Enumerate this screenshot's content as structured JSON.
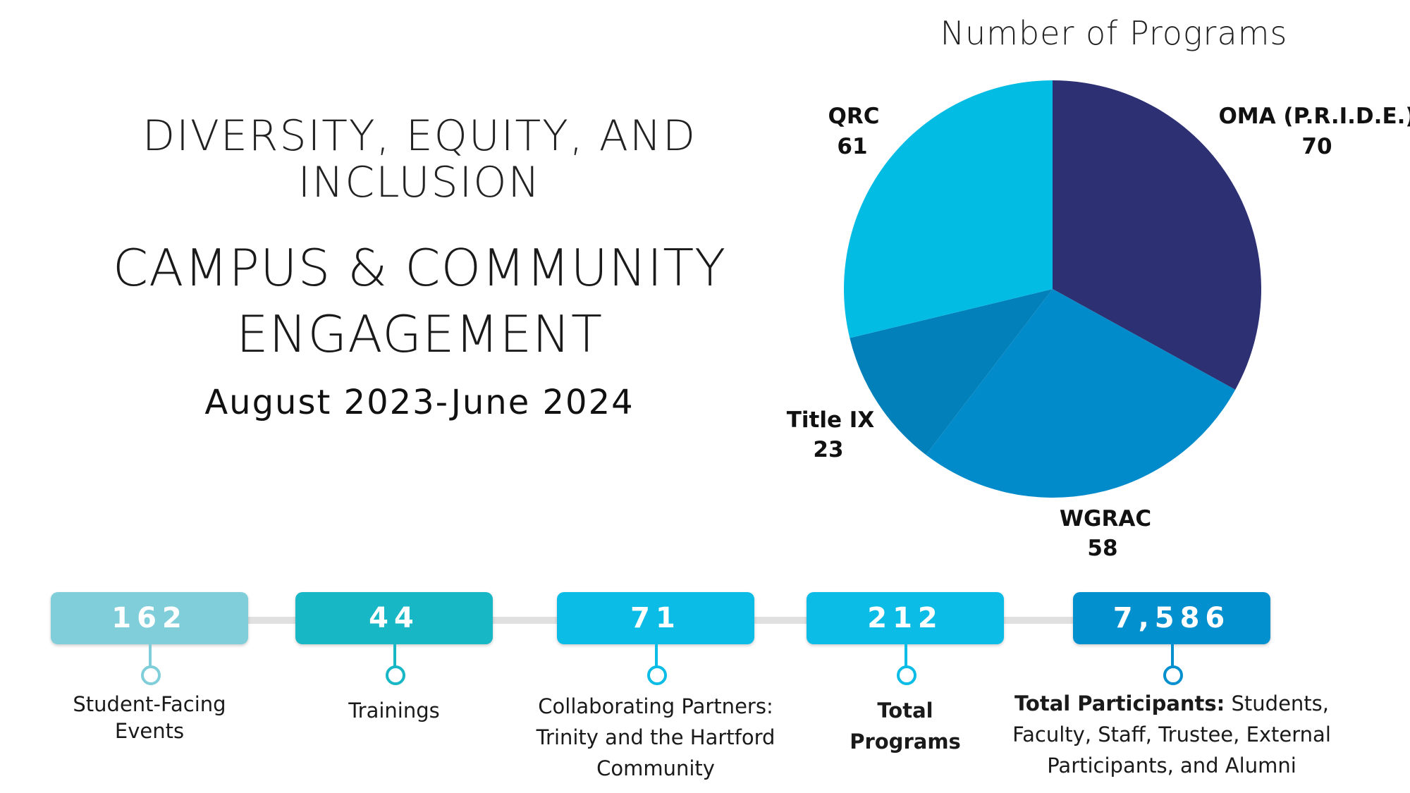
{
  "header": {
    "dei_title": "DIVERSITY, EQUITY, AND INCLUSION",
    "campus_title_line1": "CAMPUS & COMMUNITY",
    "campus_title_line2": "ENGAGEMENT",
    "date_range": "August 2023-June 2024"
  },
  "chart_data": {
    "type": "pie",
    "title": "Number of Programs",
    "slices": [
      {
        "label": "OMA (P.R.I.D.E.)",
        "value": 70,
        "color": "#2d3173"
      },
      {
        "label": "WGRAC",
        "value": 58,
        "color": "#028bca"
      },
      {
        "label": "Title IX",
        "value": 23,
        "color": "#0280ba"
      },
      {
        "label": "QRC",
        "value": 61,
        "color": "#03bce4"
      }
    ]
  },
  "stats": [
    {
      "value": "162",
      "label_line1": "Student-Facing",
      "label_line2": "Events",
      "color": "#7fced9"
    },
    {
      "value": "44",
      "label": "Trainings",
      "color": "#17b7c5"
    },
    {
      "value": "71",
      "label_line1": "Collaborating Partners:",
      "label_line2": "Trinity and the Hartford",
      "label_line3": "Community",
      "color": "#0bbde6"
    },
    {
      "value": "212",
      "label_line1": "Total",
      "label_line2": "Programs",
      "color": "#0bbde6"
    },
    {
      "value": "7,586",
      "label_bold": "Total Participants:",
      "label_rest_1": "Students,",
      "label_rest_2": "Faculty, Staff, Trustee, External",
      "label_rest_3": "Participants, and Alumni",
      "color": "#0390cf"
    }
  ]
}
